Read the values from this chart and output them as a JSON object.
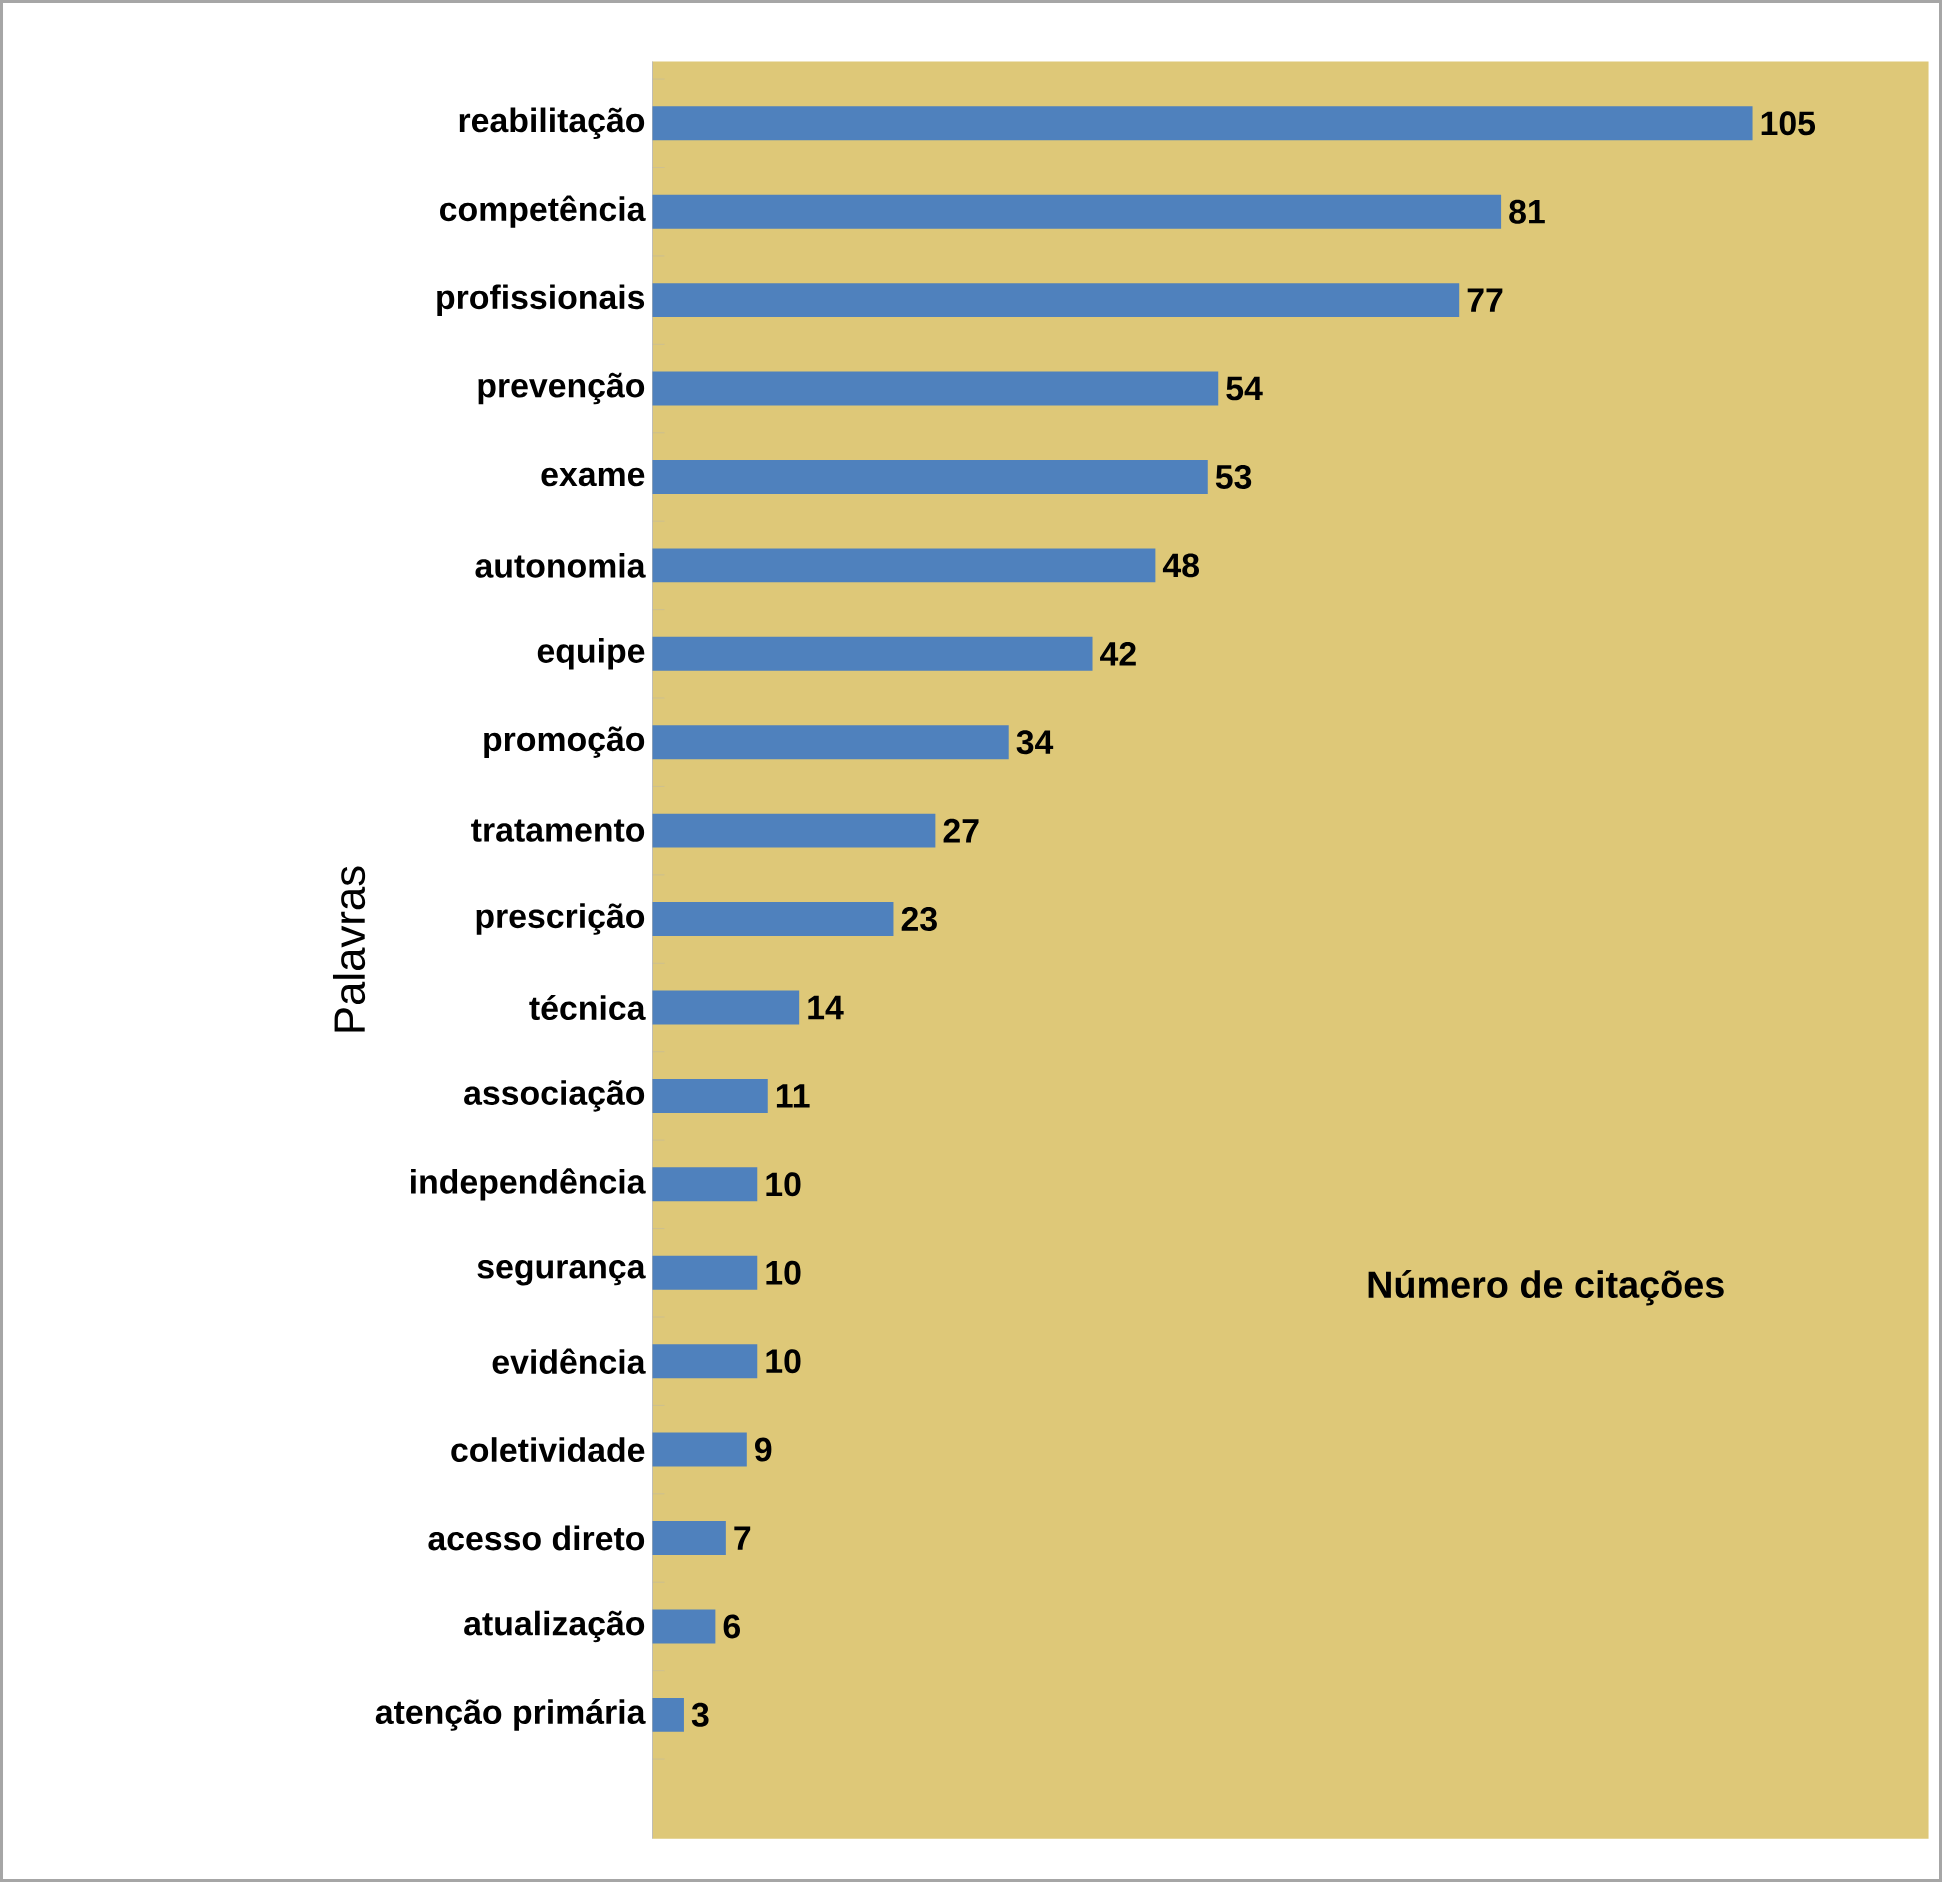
{
  "chart_data": {
    "type": "bar",
    "orientation": "horizontal",
    "xlabel": "Número de citações",
    "ylabel": "Palavras",
    "categories": [
      "reabilitação",
      "competência",
      "profissionais",
      "prevenção",
      "exame",
      "autonomia",
      "equipe",
      "promoção",
      "tratamento",
      "prescrição",
      "técnica",
      "associação",
      "independência",
      "segurança",
      "evidência",
      "coletividade",
      "acesso direto",
      "atualização",
      "atenção primária"
    ],
    "values": [
      105,
      81,
      77,
      54,
      53,
      48,
      42,
      34,
      27,
      23,
      14,
      11,
      10,
      10,
      10,
      9,
      7,
      6,
      3
    ],
    "color": "#4f81bd",
    "data_labels": true
  }
}
